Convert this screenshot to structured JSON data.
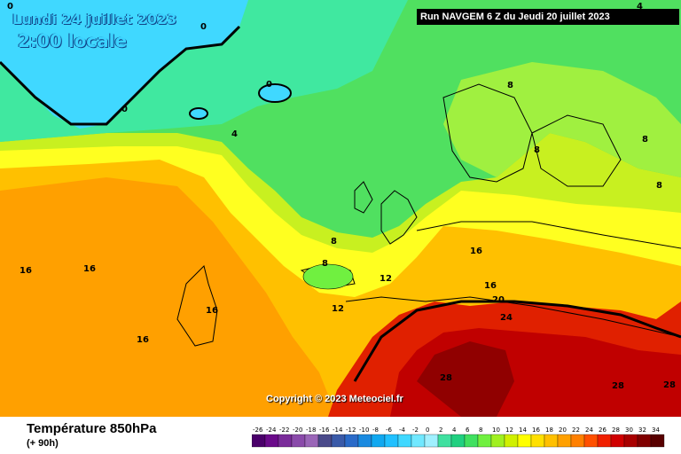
{
  "header": {
    "date": "Lundi 24 juillet 2023",
    "local_time": "2:00 locale",
    "run": "Run NAVGEM 6 Z du Jeudi 20 juillet 2023"
  },
  "copyright": "Copyright © 2023 Meteociel.fr",
  "legend": {
    "parameter": "Température 850hPa",
    "lead_time": "(+ 90h)",
    "ticks": [
      "-26",
      "-24",
      "-22",
      "-20",
      "-18",
      "-16",
      "-14",
      "-12",
      "-10",
      "-8",
      "-6",
      "-4",
      "-2",
      "0",
      "2",
      "4",
      "6",
      "8",
      "10",
      "12",
      "14",
      "16",
      "18",
      "20",
      "22",
      "24",
      "26",
      "28",
      "30",
      "32",
      "34"
    ],
    "colors": [
      "#4a006a",
      "#6a0a8a",
      "#7a2c9a",
      "#8a4aaa",
      "#9a66b8",
      "#4a4a8a",
      "#3a5aa8",
      "#2a6ac8",
      "#1a8ae0",
      "#10a8f0",
      "#20c0ff",
      "#40d8ff",
      "#70e8ff",
      "#a0f0ff",
      "#40e0a0",
      "#20d080",
      "#40e060",
      "#70f040",
      "#a0f020",
      "#d0f000",
      "#ffff00",
      "#ffe000",
      "#ffc000",
      "#ffa000",
      "#ff8000",
      "#ff5000",
      "#f02000",
      "#d00000",
      "#a80000",
      "#800000",
      "#580000"
    ]
  },
  "map": {
    "contour_labels": [
      "0",
      "0",
      "0",
      "0",
      "4",
      "8",
      "8",
      "8",
      "8",
      "8",
      "12",
      "12",
      "16",
      "16",
      "16",
      "16",
      "16",
      "16",
      "20",
      "24",
      "28",
      "28",
      "28",
      "4",
      "8"
    ],
    "colors": {
      "frozen": "#40d8ff",
      "cold_green": "#30d890",
      "green": "#50e060",
      "light_green": "#a0f040",
      "yellow": "#ffff20",
      "orange": "#ffa000",
      "red": "#e02000",
      "dark_red": "#a00000"
    }
  }
}
